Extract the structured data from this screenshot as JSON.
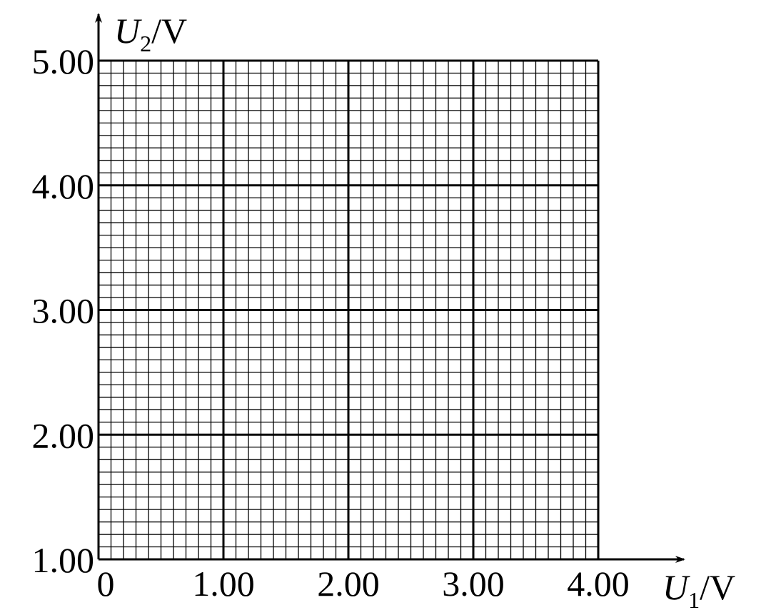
{
  "chart_data": {
    "type": "line",
    "x_label": {
      "symbol": "U",
      "subscript": "1",
      "unit": "/V"
    },
    "y_label": {
      "symbol": "U",
      "subscript": "2",
      "unit": "/V"
    },
    "xlim": [
      0,
      4
    ],
    "ylim": [
      1,
      5
    ],
    "xticks": [
      0,
      {
        "value": 1,
        "label": "1.00"
      },
      {
        "value": 2,
        "label": "2.00"
      },
      {
        "value": 3,
        "label": "3.00"
      },
      {
        "value": 4,
        "label": "4.00"
      }
    ],
    "yticks": [
      {
        "value": 1,
        "label": "1.00"
      },
      {
        "value": 2,
        "label": "2.00"
      },
      {
        "value": 3,
        "label": "3.00"
      },
      {
        "value": 4,
        "label": "4.00"
      },
      {
        "value": 5,
        "label": "5.00"
      }
    ],
    "grid": true,
    "minor_grid": 10,
    "color": "#000000",
    "series": []
  }
}
